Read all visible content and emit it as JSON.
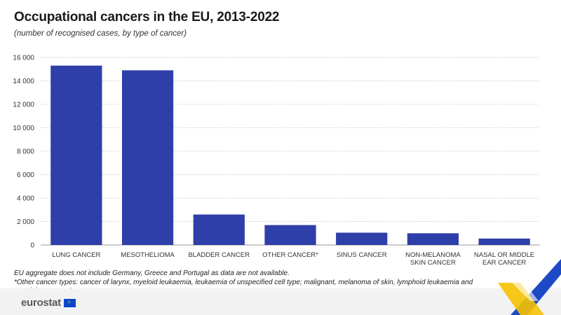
{
  "header": {
    "title": "Occupational cancers in the EU, 2013-2022",
    "subtitle": "(number of recognised cases, by type of cancer)"
  },
  "notes": {
    "line1": "EU aggregate does not include Germany, Greece and Portugal as data are not available.",
    "line2": "*Other cancer types: cancer of larynx, myeloid leukaemia, leukaemia of unspecified cell type; malignant, melanoma of skin, lymphoid leukaemia and remaining cancer types."
  },
  "footer": {
    "logo_text": "eurostat",
    "flag_icon": "eu-flag-icon"
  },
  "colors": {
    "bar": "#2e3fa9",
    "grid": "#d0d0d0",
    "corner_blue": "#1d49c7",
    "corner_yellow": "#f5c200"
  },
  "chart_data": {
    "type": "bar",
    "categories": [
      [
        "LUNG CANCER"
      ],
      [
        "MESOTHELIOMA"
      ],
      [
        "BLADDER CANCER"
      ],
      [
        "OTHER CANCER*"
      ],
      [
        "SINUS CANCER"
      ],
      [
        "NON-MELANOMA",
        "SKIN CANCER"
      ],
      [
        "NASAL OR MIDDLE",
        "EAR CANCER"
      ]
    ],
    "values": [
      15300,
      14900,
      2600,
      1700,
      1050,
      1000,
      550
    ],
    "ylim": [
      0,
      16000
    ],
    "yticks": [
      0,
      2000,
      4000,
      6000,
      8000,
      10000,
      12000,
      14000,
      16000
    ],
    "ytick_labels": [
      "0",
      "2 000",
      "4 000",
      "6 000",
      "8 000",
      "10 000",
      "12 000",
      "14 000",
      "16 000"
    ],
    "grid": true,
    "xlabel": "",
    "ylabel": ""
  }
}
